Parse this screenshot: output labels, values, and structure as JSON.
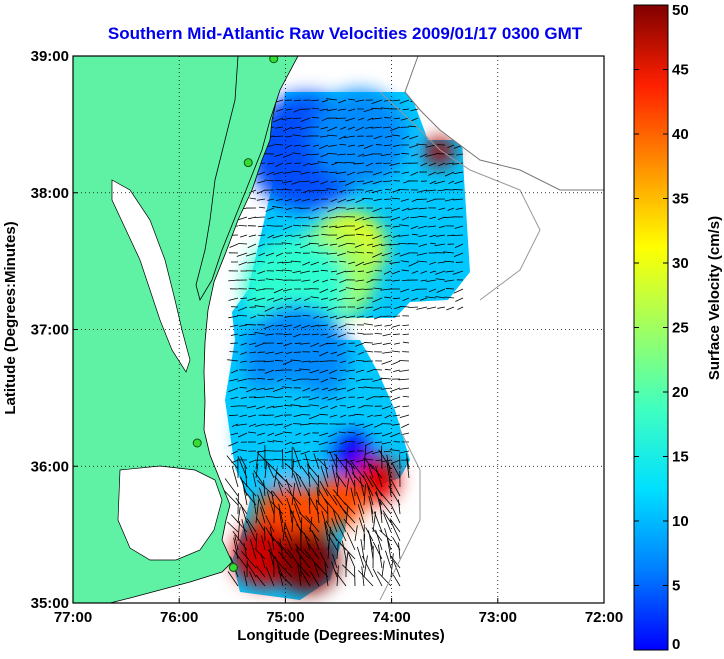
{
  "chart_data": {
    "type": "heatmap",
    "title": "Southern Mid-Atlantic Raw Velocities 2009/01/17 0300 GMT",
    "xlabel": "Longitude (Degrees:Minutes)",
    "ylabel": "Latitude (Degrees:Minutes)",
    "x_ticks": [
      "77:00",
      "76:00",
      "75:00",
      "74:00",
      "73:00",
      "72:00"
    ],
    "x_tick_values": [
      -77,
      -76,
      -75,
      -74,
      -73,
      -72
    ],
    "y_ticks": [
      "39:00",
      "38:00",
      "37:00",
      "36:00",
      "35:00"
    ],
    "y_tick_values": [
      39,
      38,
      37,
      36,
      35
    ],
    "xlim": [
      -77,
      -72
    ],
    "ylim": [
      35,
      39
    ],
    "grid": true,
    "colorbar": {
      "label": "Surface Velocity (cm/s)",
      "ticks": [
        "0",
        "5",
        "10",
        "15",
        "20",
        "25",
        "30",
        "35",
        "40",
        "45",
        "50"
      ],
      "tick_values": [
        0,
        5,
        10,
        15,
        20,
        25,
        30,
        35,
        40,
        45,
        50
      ],
      "range": [
        0,
        50
      ],
      "colormap": "jet"
    },
    "land_color": "#5ff2a4",
    "stations": [
      {
        "lon": -75.11,
        "lat": 38.98
      },
      {
        "lon": -75.35,
        "lat": 38.22
      },
      {
        "lon": -75.83,
        "lat": 36.17
      },
      {
        "lon": -75.49,
        "lat": 35.26
      }
    ],
    "speed_regions": [
      {
        "lon": -74.4,
        "lat": 37.6,
        "speed": 30,
        "radius": 0.35
      },
      {
        "lon": -74.6,
        "lat": 37.4,
        "speed": 27,
        "radius": 0.45
      },
      {
        "lon": -74.9,
        "lat": 37.3,
        "speed": 21,
        "radius": 0.5
      },
      {
        "lon": -74.8,
        "lat": 38.3,
        "speed": 10,
        "radius": 0.55
      },
      {
        "lon": -74.3,
        "lat": 38.4,
        "speed": 13,
        "radius": 0.45
      },
      {
        "lon": -73.55,
        "lat": 38.3,
        "speed": 48,
        "radius": 0.14
      },
      {
        "lon": -74.9,
        "lat": 36.8,
        "speed": 13,
        "radius": 0.5
      },
      {
        "lon": -75.0,
        "lat": 36.25,
        "speed": 16,
        "radius": 0.45
      },
      {
        "lon": -74.4,
        "lat": 36.1,
        "speed": 6,
        "radius": 0.2
      },
      {
        "lon": -74.15,
        "lat": 35.9,
        "speed": 45,
        "radius": 0.22
      },
      {
        "lon": -74.5,
        "lat": 35.75,
        "speed": 40,
        "radius": 0.25
      },
      {
        "lon": -74.95,
        "lat": 35.6,
        "speed": 40,
        "radius": 0.35
      },
      {
        "lon": -75.2,
        "lat": 35.35,
        "speed": 46,
        "radius": 0.3
      },
      {
        "lon": -74.8,
        "lat": 35.3,
        "speed": 50,
        "radius": 0.3
      }
    ]
  }
}
